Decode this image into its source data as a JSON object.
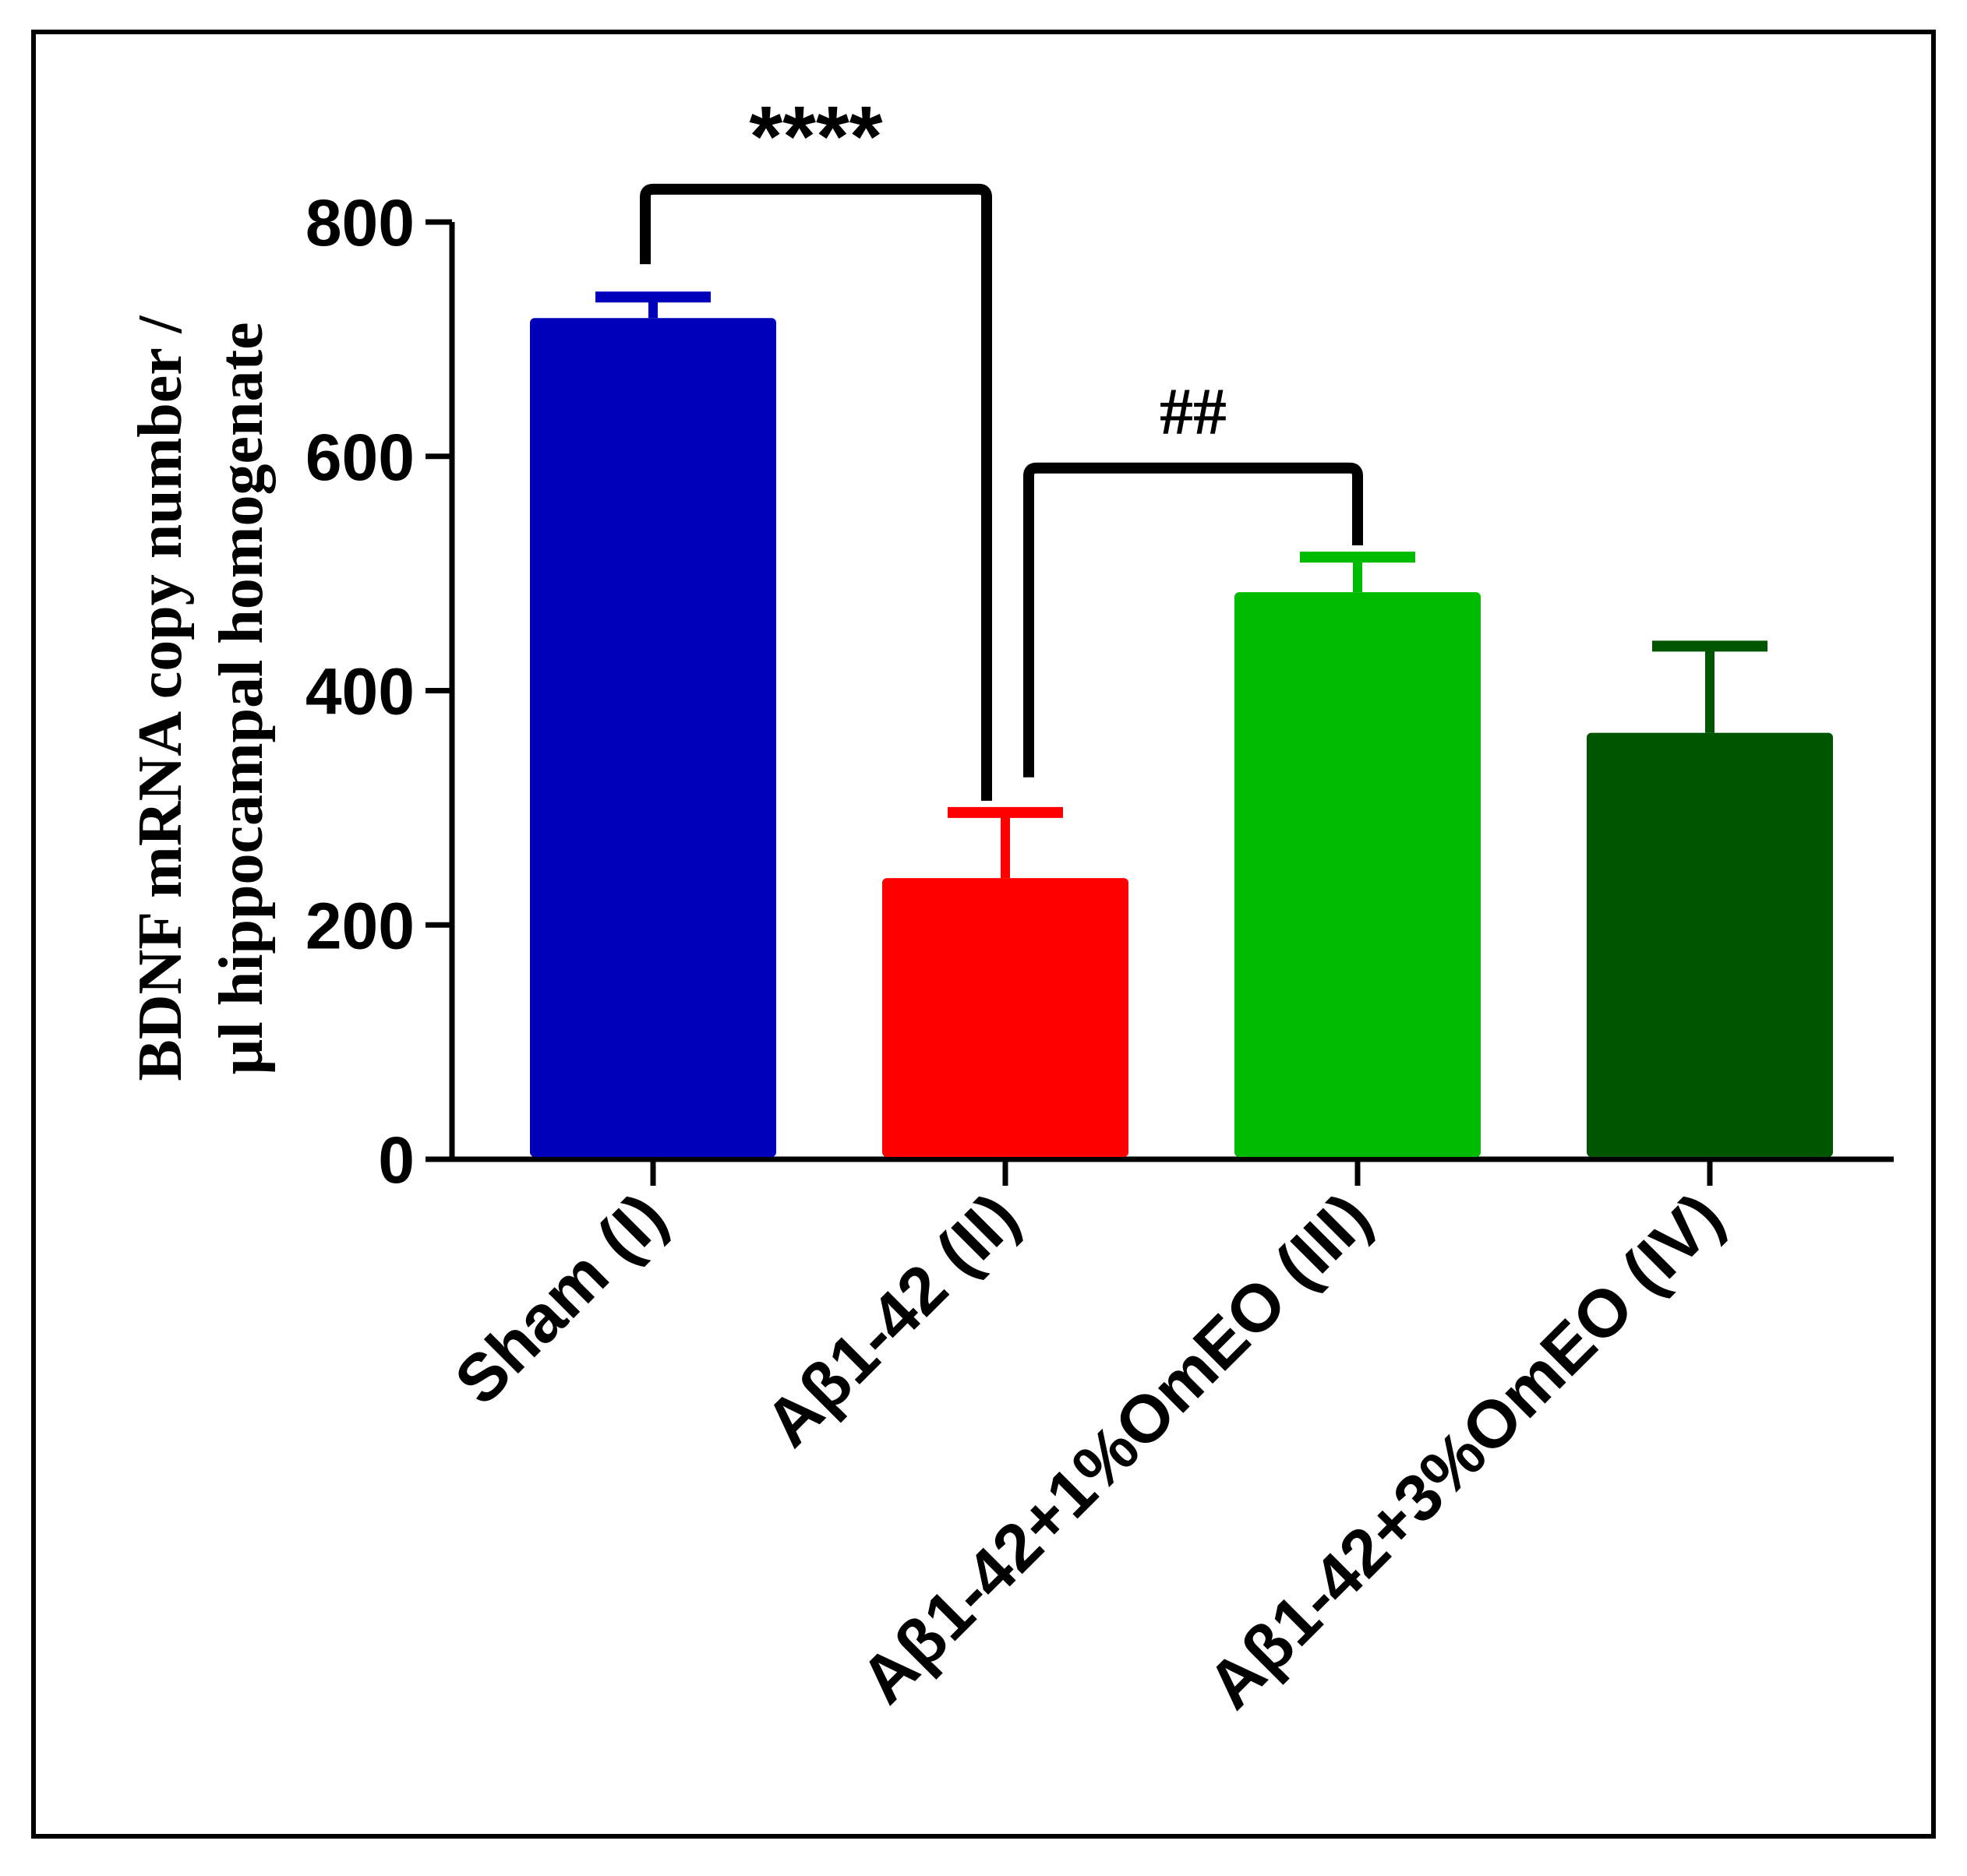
{
  "chart_data": {
    "type": "bar",
    "title": "",
    "xlabel": "",
    "ylabel": [
      "BDNF mRNA copy number /",
      "µl hippocampal homogenate"
    ],
    "categories": [
      "Sham (I)",
      "Aβ1-42 (II)",
      "Aβ1-42+1%OmEO (III)",
      "Aβ1-42+3%OmEO (IV)"
    ],
    "values": [
      718,
      240,
      484,
      364
    ],
    "errors": [
      18,
      56,
      30,
      74
    ],
    "colors": [
      "#0000bb",
      "#ff0000",
      "#00bb00",
      "#005500"
    ],
    "ylim": [
      0,
      800
    ],
    "yticks": [
      0,
      200,
      400,
      600,
      800
    ],
    "significance": [
      {
        "from": 0,
        "to": 1,
        "label": "****",
        "y": 828
      },
      {
        "from": 1,
        "to": 2,
        "label": "##",
        "y": 590
      }
    ]
  }
}
